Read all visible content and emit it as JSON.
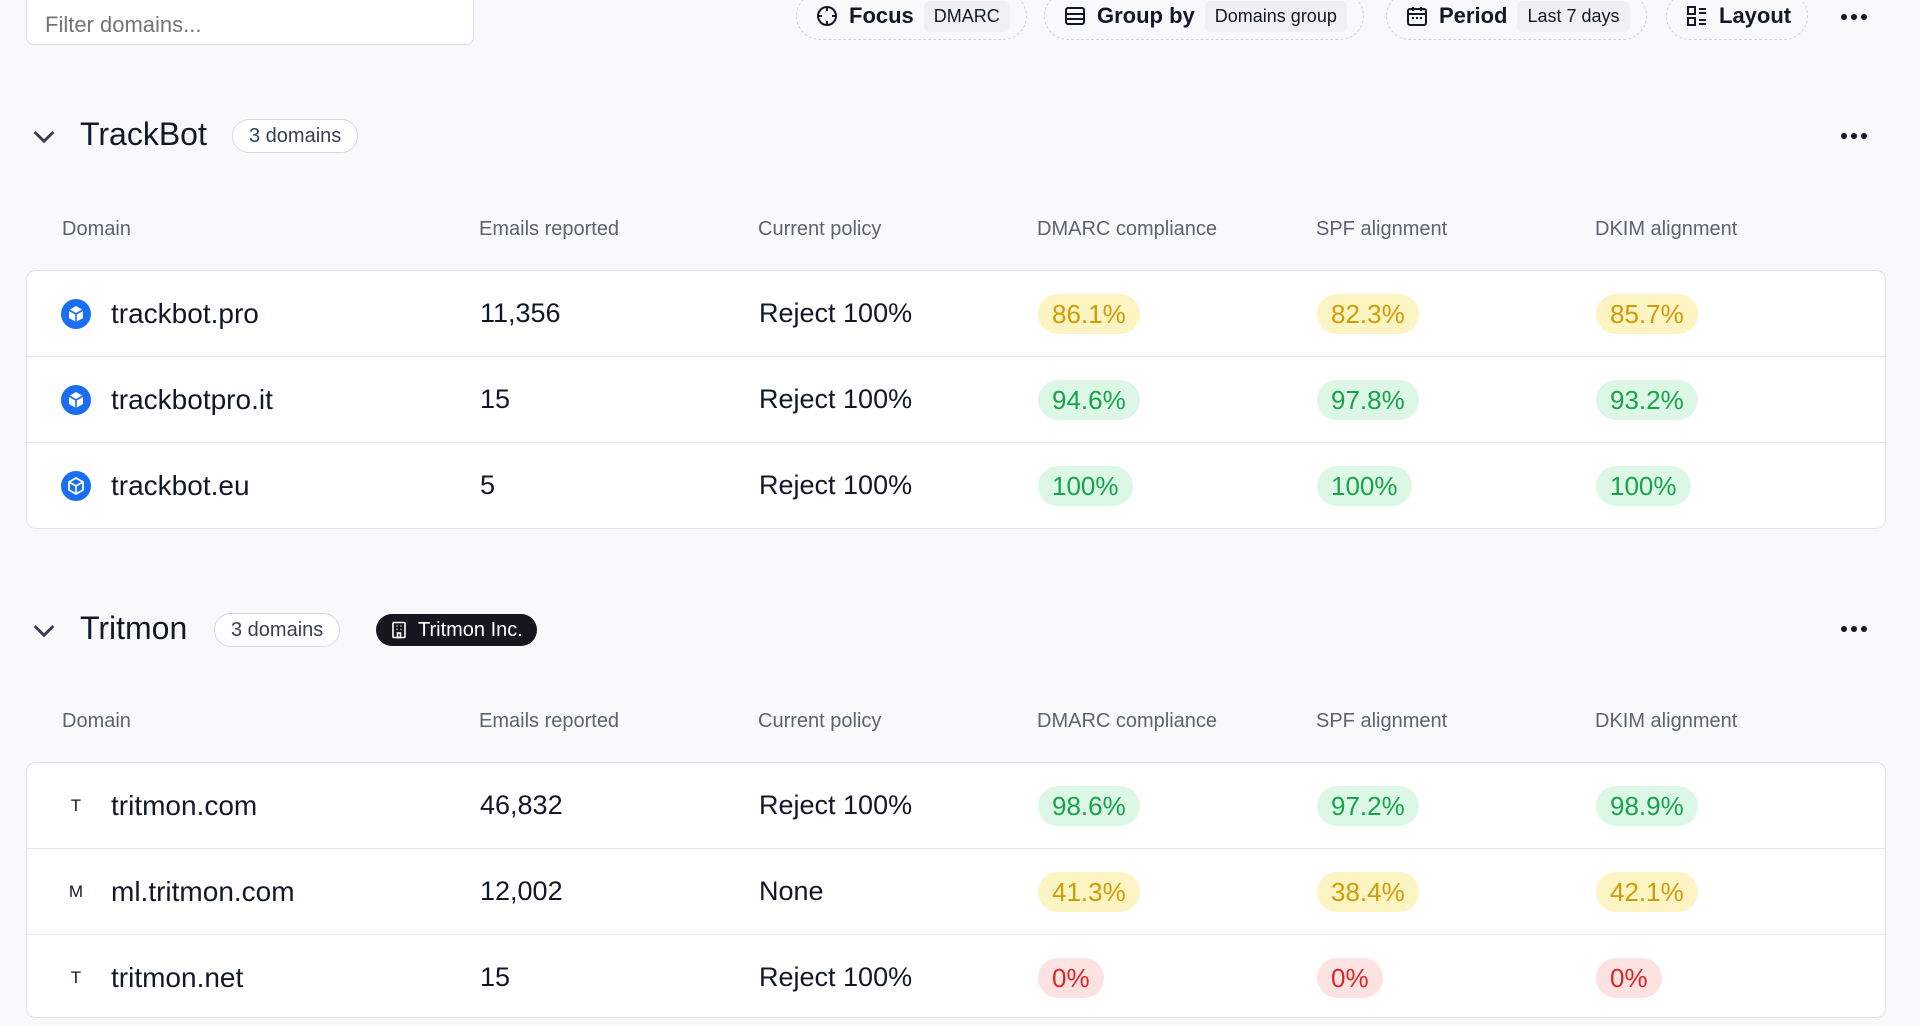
{
  "toolbar": {
    "filter_placeholder": "Filter domains...",
    "focus": {
      "label": "Focus",
      "value": "DMARC"
    },
    "group_by": {
      "label": "Group by",
      "value": "Domains group"
    },
    "period": {
      "label": "Period",
      "value": "Last 7 days"
    },
    "layout": {
      "label": "Layout"
    }
  },
  "columns": [
    "Domain",
    "Emails reported",
    "Current policy",
    "DMARC compliance",
    "SPF alignment",
    "DKIM alignment"
  ],
  "groups": [
    {
      "title": "TrackBot",
      "count": "3 domains",
      "rows": [
        {
          "icon": "cube-icon",
          "domain": "trackbot.pro",
          "emails": "11,356",
          "policy": "Reject 100%",
          "dmarc": "86.1%",
          "dmarc_status": "warn",
          "spf": "82.3%",
          "spf_status": "warn",
          "dkim": "85.7%",
          "dkim_status": "warn"
        },
        {
          "icon": "cube-icon",
          "domain": "trackbotpro.it",
          "emails": "15",
          "policy": "Reject 100%",
          "dmarc": "94.6%",
          "dmarc_status": "good",
          "spf": "97.8%",
          "spf_status": "good",
          "dkim": "93.2%",
          "dkim_status": "good"
        },
        {
          "icon": "cube-icon",
          "domain": "trackbot.eu",
          "emails": "5",
          "policy": "Reject 100%",
          "dmarc": "100%",
          "dmarc_status": "good",
          "spf": "100%",
          "spf_status": "good",
          "dkim": "100%",
          "dkim_status": "good"
        }
      ]
    },
    {
      "title": "Tritmon",
      "count": "3 domains",
      "org": "Tritmon Inc.",
      "rows": [
        {
          "icon_letter": "T",
          "domain": "tritmon.com",
          "emails": "46,832",
          "policy": "Reject 100%",
          "dmarc": "98.6%",
          "dmarc_status": "good",
          "spf": "97.2%",
          "spf_status": "good",
          "dkim": "98.9%",
          "dkim_status": "good"
        },
        {
          "icon_letter": "M",
          "domain": "ml.tritmon.com",
          "emails": "12,002",
          "policy": "None",
          "dmarc": "41.3%",
          "dmarc_status": "warn",
          "spf": "38.4%",
          "spf_status": "warn",
          "dkim": "42.1%",
          "dkim_status": "warn"
        },
        {
          "icon_letter": "T",
          "domain": "tritmon.net",
          "emails": "15",
          "policy": "Reject 100%",
          "dmarc": "0%",
          "dmarc_status": "bad",
          "spf": "0%",
          "spf_status": "bad",
          "dkim": "0%",
          "dkim_status": "bad"
        }
      ]
    }
  ],
  "colors": {
    "good": "#17a34a",
    "warn": "#d29a06",
    "bad": "#dc2626",
    "brand_icon": "#1a6ef5"
  }
}
